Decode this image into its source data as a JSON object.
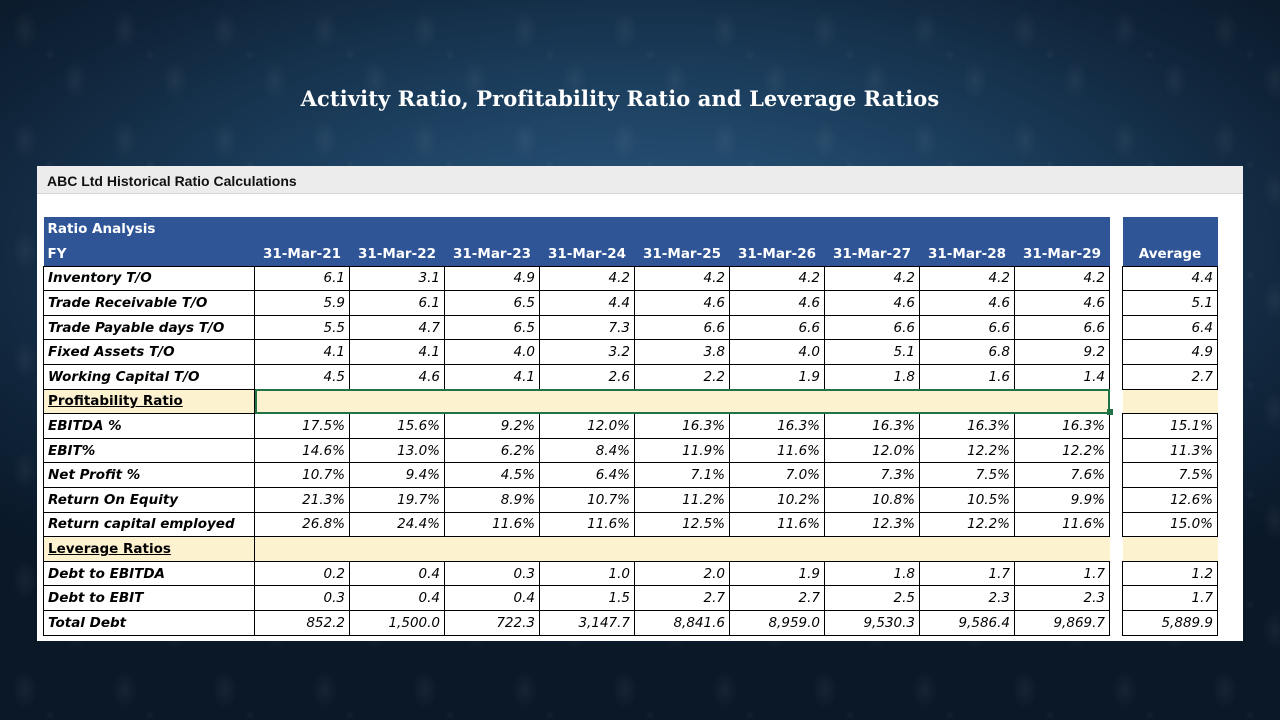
{
  "slide": {
    "title": "Activity Ratio, Profitability Ratio and Leverage Ratios"
  },
  "sheet": {
    "title": "ABC Ltd Historical Ratio Calculations",
    "header": {
      "section_label": "Ratio Analysis",
      "fy_label": "FY",
      "years": [
        "31-Mar-21",
        "31-Mar-22",
        "31-Mar-23",
        "31-Mar-24",
        "31-Mar-25",
        "31-Mar-26",
        "31-Mar-27",
        "31-Mar-28",
        "31-Mar-29"
      ],
      "average_label": "Average"
    },
    "rows": [
      {
        "kind": "data",
        "label": "Inventory  T/O",
        "values": [
          "6.1",
          "3.1",
          "4.9",
          "4.2",
          "4.2",
          "4.2",
          "4.2",
          "4.2",
          "4.2"
        ],
        "average": "4.4"
      },
      {
        "kind": "data",
        "label": "Trade Receivable T/O",
        "values": [
          "5.9",
          "6.1",
          "6.5",
          "4.4",
          "4.6",
          "4.6",
          "4.6",
          "4.6",
          "4.6"
        ],
        "average": "5.1"
      },
      {
        "kind": "data",
        "label": "Trade Payable days T/O",
        "values": [
          "5.5",
          "4.7",
          "6.5",
          "7.3",
          "6.6",
          "6.6",
          "6.6",
          "6.6",
          "6.6"
        ],
        "average": "6.4"
      },
      {
        "kind": "data",
        "label": "Fixed Assets T/O",
        "values": [
          "4.1",
          "4.1",
          "4.0",
          "3.2",
          "3.8",
          "4.0",
          "5.1",
          "6.8",
          "9.2"
        ],
        "average": "4.9"
      },
      {
        "kind": "data",
        "label": "Working Capital T/O",
        "values": [
          "4.5",
          "4.6",
          "4.1",
          "2.6",
          "2.2",
          "1.9",
          "1.8",
          "1.6",
          "1.4"
        ],
        "average": "2.7"
      },
      {
        "kind": "section",
        "label": "Profitability Ratio",
        "selected": true
      },
      {
        "kind": "data",
        "label": "EBITDA %",
        "values": [
          "17.5%",
          "15.6%",
          "9.2%",
          "12.0%",
          "16.3%",
          "16.3%",
          "16.3%",
          "16.3%",
          "16.3%"
        ],
        "average": "15.1%"
      },
      {
        "kind": "data",
        "label": "EBIT%",
        "values": [
          "14.6%",
          "13.0%",
          "6.2%",
          "8.4%",
          "11.9%",
          "11.6%",
          "12.0%",
          "12.2%",
          "12.2%"
        ],
        "average": "11.3%"
      },
      {
        "kind": "data",
        "label": "Net Profit %",
        "values": [
          "10.7%",
          "9.4%",
          "4.5%",
          "6.4%",
          "7.1%",
          "7.0%",
          "7.3%",
          "7.5%",
          "7.6%"
        ],
        "average": "7.5%"
      },
      {
        "kind": "data",
        "label": "Return On Equity",
        "values": [
          "21.3%",
          "19.7%",
          "8.9%",
          "10.7%",
          "11.2%",
          "10.2%",
          "10.8%",
          "10.5%",
          "9.9%"
        ],
        "average": "12.6%"
      },
      {
        "kind": "data",
        "label": "Return capital employed",
        "values": [
          "26.8%",
          "24.4%",
          "11.6%",
          "11.6%",
          "12.5%",
          "11.6%",
          "12.3%",
          "12.2%",
          "11.6%"
        ],
        "average": "15.0%"
      },
      {
        "kind": "section",
        "label": "Leverage Ratios",
        "selected": false
      },
      {
        "kind": "data",
        "label": "Debt to EBITDA",
        "values": [
          "0.2",
          "0.4",
          "0.3",
          "1.0",
          "2.0",
          "1.9",
          "1.8",
          "1.7",
          "1.7"
        ],
        "average": "1.2"
      },
      {
        "kind": "data",
        "label": "Debt to EBIT",
        "values": [
          "0.3",
          "0.4",
          "0.4",
          "1.5",
          "2.7",
          "2.7",
          "2.5",
          "2.3",
          "2.3"
        ],
        "average": "1.7"
      },
      {
        "kind": "data",
        "label": "Total Debt",
        "values": [
          "852.2",
          "1,500.0",
          "722.3",
          "3,147.7",
          "8,841.6",
          "8,959.0",
          "9,530.3",
          "9,586.4",
          "9,869.7"
        ],
        "average": "5,889.9"
      }
    ]
  },
  "colors": {
    "header_blue": "#2f5597",
    "section_fill": "#fdf2d0",
    "selection_green": "#217346"
  }
}
